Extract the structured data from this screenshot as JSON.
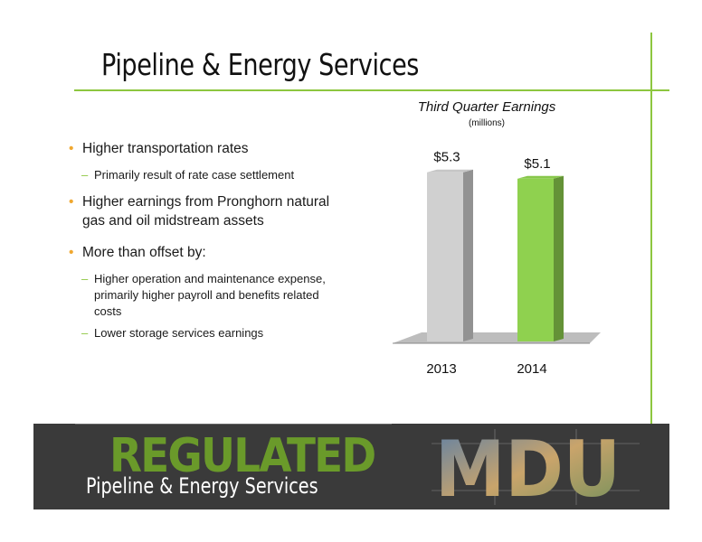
{
  "slide": {
    "title": "Pipeline & Energy Services"
  },
  "bullets": [
    {
      "text": "Higher transportation rates",
      "sub": [
        "Primarily result of rate case settlement"
      ]
    },
    {
      "text": "Higher earnings from Pronghorn natural gas and oil midstream assets",
      "sub": []
    },
    {
      "text": "More than offset by:",
      "sub": [
        "Higher operation and maintenance expense, primarily higher payroll and benefits related costs",
        "Lower storage services earnings"
      ]
    }
  ],
  "chart_data": {
    "type": "bar",
    "title": "Third Quarter Earnings",
    "subtitle": "(millions)",
    "categories": [
      "2013",
      "2014"
    ],
    "values": [
      5.3,
      5.1
    ],
    "data_labels": [
      "$5.3",
      "$5.1"
    ],
    "colors": [
      "#d0d0d0",
      "#8fd14f"
    ],
    "ylim": [
      0,
      6
    ],
    "grid": false,
    "legend": "none"
  },
  "banner": {
    "word": "REGULATED",
    "subtitle": "Pipeline & Energy Services",
    "logo_text": "MDU",
    "background": "#3a3a3a",
    "accent": "#6a9a2a"
  },
  "colors": {
    "accent_green": "#8dc63f",
    "bullet_orange": "#f0a830"
  }
}
